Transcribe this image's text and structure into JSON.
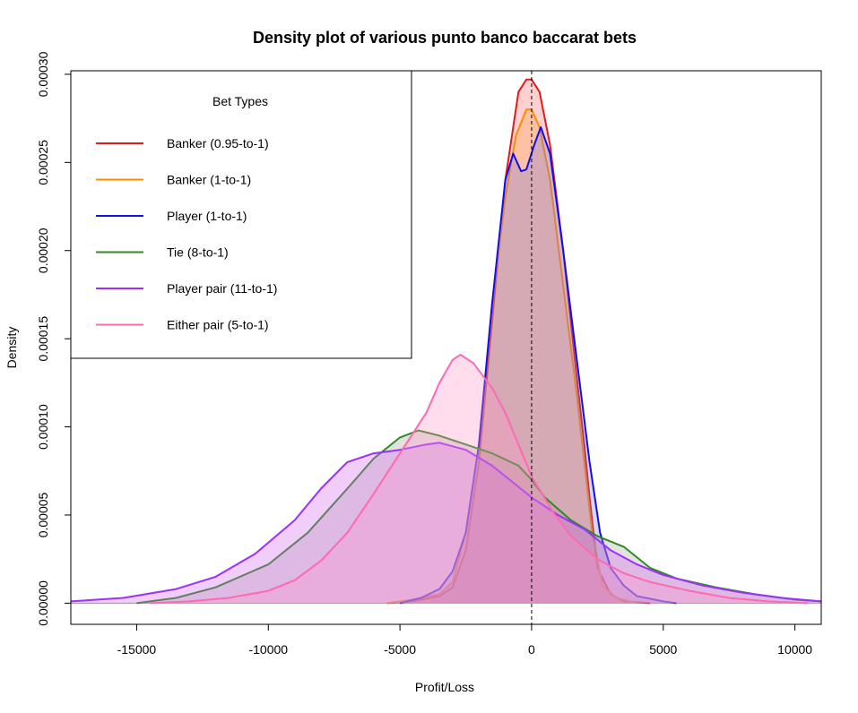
{
  "chart_data": {
    "type": "area",
    "title": "Density plot of various punto banco baccarat bets",
    "xlabel": "Profit/Loss",
    "ylabel": "Density",
    "xlim": [
      -17500,
      11000
    ],
    "ylim": [
      -1.2e-05,
      0.000302
    ],
    "x_ticks": [
      -15000,
      -10000,
      -5000,
      0,
      5000,
      10000
    ],
    "x_tick_labels": [
      "-15000",
      "-10000",
      "-5000",
      "0",
      "5000",
      "10000"
    ],
    "y_ticks": [
      0,
      5e-05,
      0.0001,
      0.00015,
      0.0002,
      0.00025,
      0.0003
    ],
    "y_tick_labels": [
      "0.00000",
      "0.00005",
      "0.00010",
      "0.00015",
      "0.00020",
      "0.00025",
      "0.00030"
    ],
    "reference_line": {
      "x": 0,
      "style": "dashed"
    },
    "legend": {
      "title": "Bet Types",
      "placement": "top-left"
    },
    "series": [
      {
        "name": "Banker (0.95-to-1)",
        "color": "#e31a1c",
        "fill": "rgba(255,110,110,0.32)",
        "points": [
          [
            -5500,
            0
          ],
          [
            -4500,
            1e-06
          ],
          [
            -3500,
            4e-06
          ],
          [
            -3000,
            9e-06
          ],
          [
            -2500,
            3e-05
          ],
          [
            -2000,
            8e-05
          ],
          [
            -1500,
            0.00016
          ],
          [
            -1000,
            0.00024
          ],
          [
            -500,
            0.00029
          ],
          [
            -200,
            0.000297
          ],
          [
            0,
            0.000297
          ],
          [
            300,
            0.00029
          ],
          [
            700,
            0.00026
          ],
          [
            1200,
            0.0002
          ],
          [
            1700,
            0.00013
          ],
          [
            2000,
            9e-05
          ],
          [
            2200,
            6e-05
          ],
          [
            2500,
            2e-05
          ],
          [
            3000,
            5e-06
          ],
          [
            3500,
            1e-06
          ],
          [
            4500,
            0
          ]
        ]
      },
      {
        "name": "Banker (1-to-1)",
        "color": "#ff8c00",
        "fill": "rgba(255,165,80,0.34)",
        "points": [
          [
            -5500,
            0
          ],
          [
            -4500,
            2e-06
          ],
          [
            -3500,
            5e-06
          ],
          [
            -3000,
            1.2e-05
          ],
          [
            -2500,
            4e-05
          ],
          [
            -2000,
            9e-05
          ],
          [
            -1500,
            0.00017
          ],
          [
            -1000,
            0.00023
          ],
          [
            -600,
            0.000265
          ],
          [
            -200,
            0.00028
          ],
          [
            0,
            0.00028
          ],
          [
            300,
            0.00027
          ],
          [
            700,
            0.00024
          ],
          [
            1200,
            0.00018
          ],
          [
            1700,
            0.00012
          ],
          [
            2000,
            8e-05
          ],
          [
            2300,
            4e-05
          ],
          [
            2700,
            1e-05
          ],
          [
            3200,
            3e-06
          ],
          [
            4000,
            0
          ]
        ]
      },
      {
        "name": "Player (1-to-1)",
        "color": "#1010ee",
        "fill": "rgba(120,120,220,0.30)",
        "points": [
          [
            -5000,
            0
          ],
          [
            -4200,
            3e-06
          ],
          [
            -3500,
            8e-06
          ],
          [
            -3000,
            1.8e-05
          ],
          [
            -2500,
            4e-05
          ],
          [
            -2000,
            9e-05
          ],
          [
            -1500,
            0.00017
          ],
          [
            -1000,
            0.00024
          ],
          [
            -700,
            0.000255
          ],
          [
            -400,
            0.000245
          ],
          [
            -200,
            0.000246
          ],
          [
            100,
            0.00026
          ],
          [
            350,
            0.00027
          ],
          [
            700,
            0.000255
          ],
          [
            1200,
            0.0002
          ],
          [
            1700,
            0.00014
          ],
          [
            2200,
            8e-05
          ],
          [
            2600,
            4e-05
          ],
          [
            3000,
            2e-05
          ],
          [
            3500,
            1e-05
          ],
          [
            4000,
            4e-06
          ],
          [
            5000,
            1e-06
          ],
          [
            5500,
            0
          ]
        ]
      },
      {
        "name": "Tie (8-to-1)",
        "color": "#2e8b22",
        "fill": "rgba(160,160,150,0.30)",
        "points": [
          [
            -15000,
            0
          ],
          [
            -13500,
            3e-06
          ],
          [
            -12000,
            9e-06
          ],
          [
            -10000,
            2.2e-05
          ],
          [
            -8500,
            4e-05
          ],
          [
            -7000,
            6.5e-05
          ],
          [
            -6000,
            8.2e-05
          ],
          [
            -5000,
            9.4e-05
          ],
          [
            -4300,
            9.8e-05
          ],
          [
            -3500,
            9.5e-05
          ],
          [
            -2500,
            9e-05
          ],
          [
            -1500,
            8.5e-05
          ],
          [
            -500,
            7.8e-05
          ],
          [
            0,
            7e-05
          ],
          [
            500,
            6e-05
          ],
          [
            1500,
            4.7e-05
          ],
          [
            2500,
            3.8e-05
          ],
          [
            3500,
            3.2e-05
          ],
          [
            4500,
            2e-05
          ],
          [
            5500,
            1.4e-05
          ],
          [
            7000,
            9e-06
          ],
          [
            8500,
            5e-06
          ],
          [
            10000,
            2e-06
          ],
          [
            11000,
            1e-06
          ]
        ]
      },
      {
        "name": "Player pair (11-to-1)",
        "color": "#9b30ff",
        "fill": "rgba(210,100,240,0.32)",
        "points": [
          [
            -17500,
            1e-06
          ],
          [
            -15500,
            3e-06
          ],
          [
            -13500,
            8e-06
          ],
          [
            -12000,
            1.5e-05
          ],
          [
            -10500,
            2.8e-05
          ],
          [
            -9000,
            4.7e-05
          ],
          [
            -8000,
            6.5e-05
          ],
          [
            -7000,
            8e-05
          ],
          [
            -6000,
            8.5e-05
          ],
          [
            -5000,
            8.7e-05
          ],
          [
            -4000,
            9e-05
          ],
          [
            -3500,
            9.1e-05
          ],
          [
            -2500,
            8.7e-05
          ],
          [
            -1500,
            7.8e-05
          ],
          [
            -500,
            6.6e-05
          ],
          [
            0,
            6e-05
          ],
          [
            1000,
            5e-05
          ],
          [
            2000,
            4.2e-05
          ],
          [
            3000,
            3e-05
          ],
          [
            4000,
            2.2e-05
          ],
          [
            5000,
            1.6e-05
          ],
          [
            6500,
            1e-05
          ],
          [
            8000,
            6e-06
          ],
          [
            9500,
            3e-06
          ],
          [
            11000,
            1e-06
          ]
        ]
      },
      {
        "name": "Either pair (5-to-1)",
        "color": "#ff69b4",
        "fill": "rgba(255,150,200,0.32)",
        "points": [
          [
            -14500,
            0
          ],
          [
            -13000,
            1e-06
          ],
          [
            -11500,
            3e-06
          ],
          [
            -10000,
            7e-06
          ],
          [
            -9000,
            1.3e-05
          ],
          [
            -8000,
            2.4e-05
          ],
          [
            -7000,
            4e-05
          ],
          [
            -6000,
            6.2e-05
          ],
          [
            -5000,
            8.5e-05
          ],
          [
            -4000,
            0.000108
          ],
          [
            -3500,
            0.000125
          ],
          [
            -3000,
            0.000138
          ],
          [
            -2700,
            0.000141
          ],
          [
            -2200,
            0.000136
          ],
          [
            -1500,
            0.000122
          ],
          [
            -1000,
            0.000108
          ],
          [
            -500,
            9e-05
          ],
          [
            0,
            7.2e-05
          ],
          [
            800,
            5.2e-05
          ],
          [
            1500,
            3.8e-05
          ],
          [
            2500,
            2.5e-05
          ],
          [
            3500,
            1.7e-05
          ],
          [
            4500,
            1.2e-05
          ],
          [
            6000,
            7e-06
          ],
          [
            7500,
            3e-06
          ],
          [
            9000,
            1e-06
          ],
          [
            10500,
            0
          ]
        ]
      }
    ]
  }
}
